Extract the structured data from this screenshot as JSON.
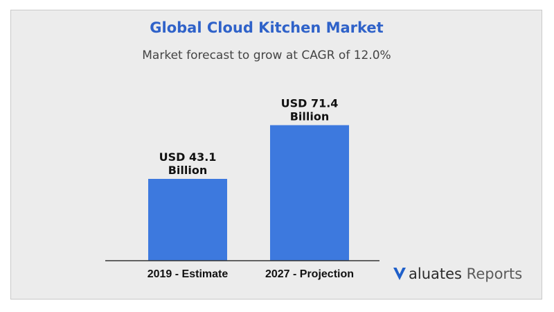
{
  "chart_data": {
    "type": "bar",
    "title": "Global Cloud Kitchen Market",
    "subtitle": "Market forecast to grow at CAGR of 12.0%",
    "categories": [
      "2019 - Estimate",
      "2027 - Projection"
    ],
    "values": [
      43.1,
      71.4
    ],
    "data_labels": [
      [
        "USD 43.1",
        "Billion"
      ],
      [
        "USD 71.4",
        "Billion"
      ]
    ],
    "xlabel": "",
    "ylabel": "",
    "ylim": [
      0,
      80
    ],
    "grid": false,
    "bar_color": "#3d79de"
  },
  "colors": {
    "title": "#2f62c9",
    "background": "#ececec",
    "brand_mark": "#1f5fc9"
  },
  "brand": {
    "icon": "valuates-v-logo",
    "name_part1": "aluates",
    "name_part2": "Reports"
  }
}
